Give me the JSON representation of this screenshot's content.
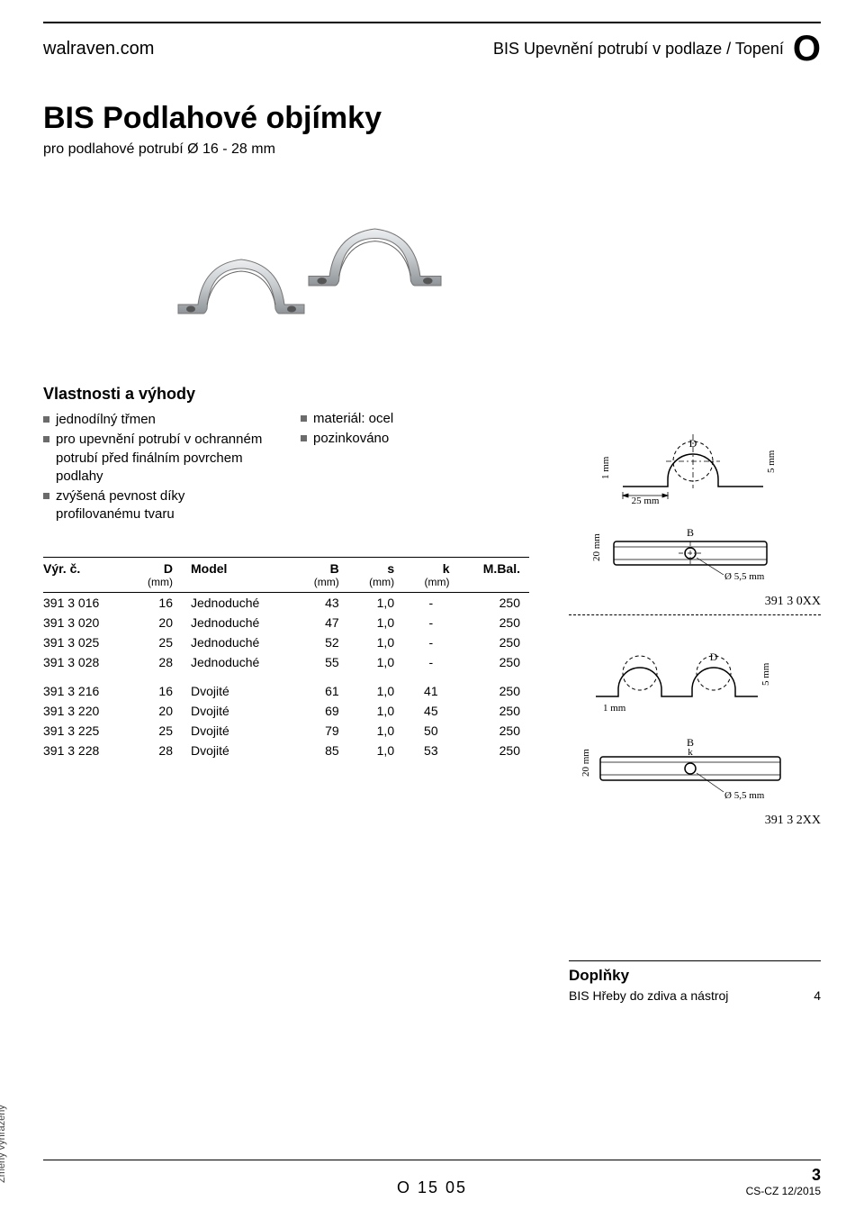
{
  "header": {
    "site": "walraven.com",
    "breadcrumb": "BIS Upevnění potrubí v podlaze / Topení",
    "section_letter": "O"
  },
  "title": "BIS Podlahové objímky",
  "subtitle": "pro podlahové potrubí Ø 16 - 28 mm",
  "properties": {
    "heading": "Vlastnosti a výhody",
    "left": [
      "jednodílný třmen",
      "pro upevnění potrubí v ochranném potrubí před finálním povrchem podlahy",
      "zvýšená pevnost díky profilovanému tvaru"
    ],
    "right": [
      "materiál: ocel",
      "pozinkováno"
    ]
  },
  "table": {
    "columns": [
      {
        "key": "code",
        "label": "Výr. č.",
        "unit": "",
        "align": "left"
      },
      {
        "key": "D",
        "label": "D",
        "unit": "(mm)",
        "align": "right"
      },
      {
        "key": "model",
        "label": "Model",
        "unit": "",
        "align": "left"
      },
      {
        "key": "B",
        "label": "B",
        "unit": "(mm)",
        "align": "right"
      },
      {
        "key": "s",
        "label": "s",
        "unit": "(mm)",
        "align": "right"
      },
      {
        "key": "k",
        "label": "k",
        "unit": "(mm)",
        "align": "right"
      },
      {
        "key": "mbal",
        "label": "M.Bal.",
        "unit": "",
        "align": "right"
      }
    ],
    "groups": [
      [
        {
          "code": "391 3 016",
          "D": "16",
          "model": "Jednoduché",
          "B": "43",
          "s": "1,0",
          "k": "-",
          "mbal": "250"
        },
        {
          "code": "391 3 020",
          "D": "20",
          "model": "Jednoduché",
          "B": "47",
          "s": "1,0",
          "k": "-",
          "mbal": "250"
        },
        {
          "code": "391 3 025",
          "D": "25",
          "model": "Jednoduché",
          "B": "52",
          "s": "1,0",
          "k": "-",
          "mbal": "250"
        },
        {
          "code": "391 3 028",
          "D": "28",
          "model": "Jednoduché",
          "B": "55",
          "s": "1,0",
          "k": "-",
          "mbal": "250"
        }
      ],
      [
        {
          "code": "391 3 216",
          "D": "16",
          "model": "Dvojité",
          "B": "61",
          "s": "1,0",
          "k": "41",
          "mbal": "250"
        },
        {
          "code": "391 3 220",
          "D": "20",
          "model": "Dvojité",
          "B": "69",
          "s": "1,0",
          "k": "45",
          "mbal": "250"
        },
        {
          "code": "391 3 225",
          "D": "25",
          "model": "Dvojité",
          "B": "79",
          "s": "1,0",
          "k": "50",
          "mbal": "250"
        },
        {
          "code": "391 3 228",
          "D": "28",
          "model": "Dvojité",
          "B": "85",
          "s": "1,0",
          "k": "53",
          "mbal": "250"
        }
      ]
    ]
  },
  "diagrams": {
    "single": {
      "dims": {
        "base": "25 mm",
        "gap": "1 mm",
        "D": "D",
        "height": "5 mm"
      },
      "top": {
        "width": "B",
        "hole": "Ø 5,5 mm",
        "depth": "20 mm"
      },
      "label": "391 3 0XX",
      "colors": {
        "stroke": "#000",
        "dash": "#000"
      }
    },
    "double": {
      "dims": {
        "gap": "1 mm",
        "D": "D",
        "height": "5 mm"
      },
      "top": {
        "width": "B",
        "k": "k",
        "hole": "Ø 5,5 mm",
        "depth": "20 mm"
      },
      "label": "391 3 2XX"
    }
  },
  "addons": {
    "heading": "Doplňky",
    "row": {
      "text": "BIS Hřeby do zdiva a nástroj",
      "ref": "4"
    }
  },
  "footer": {
    "center_code": "O 15 05",
    "page_num": "3",
    "doc_code": "CS-CZ 12/2015",
    "side_note": "Změny vyhrazeny"
  },
  "colors": {
    "text": "#000000",
    "bullet": "#6b6b6b",
    "metal_light": "#d4d6d8",
    "metal_dark": "#9a9ea2"
  }
}
